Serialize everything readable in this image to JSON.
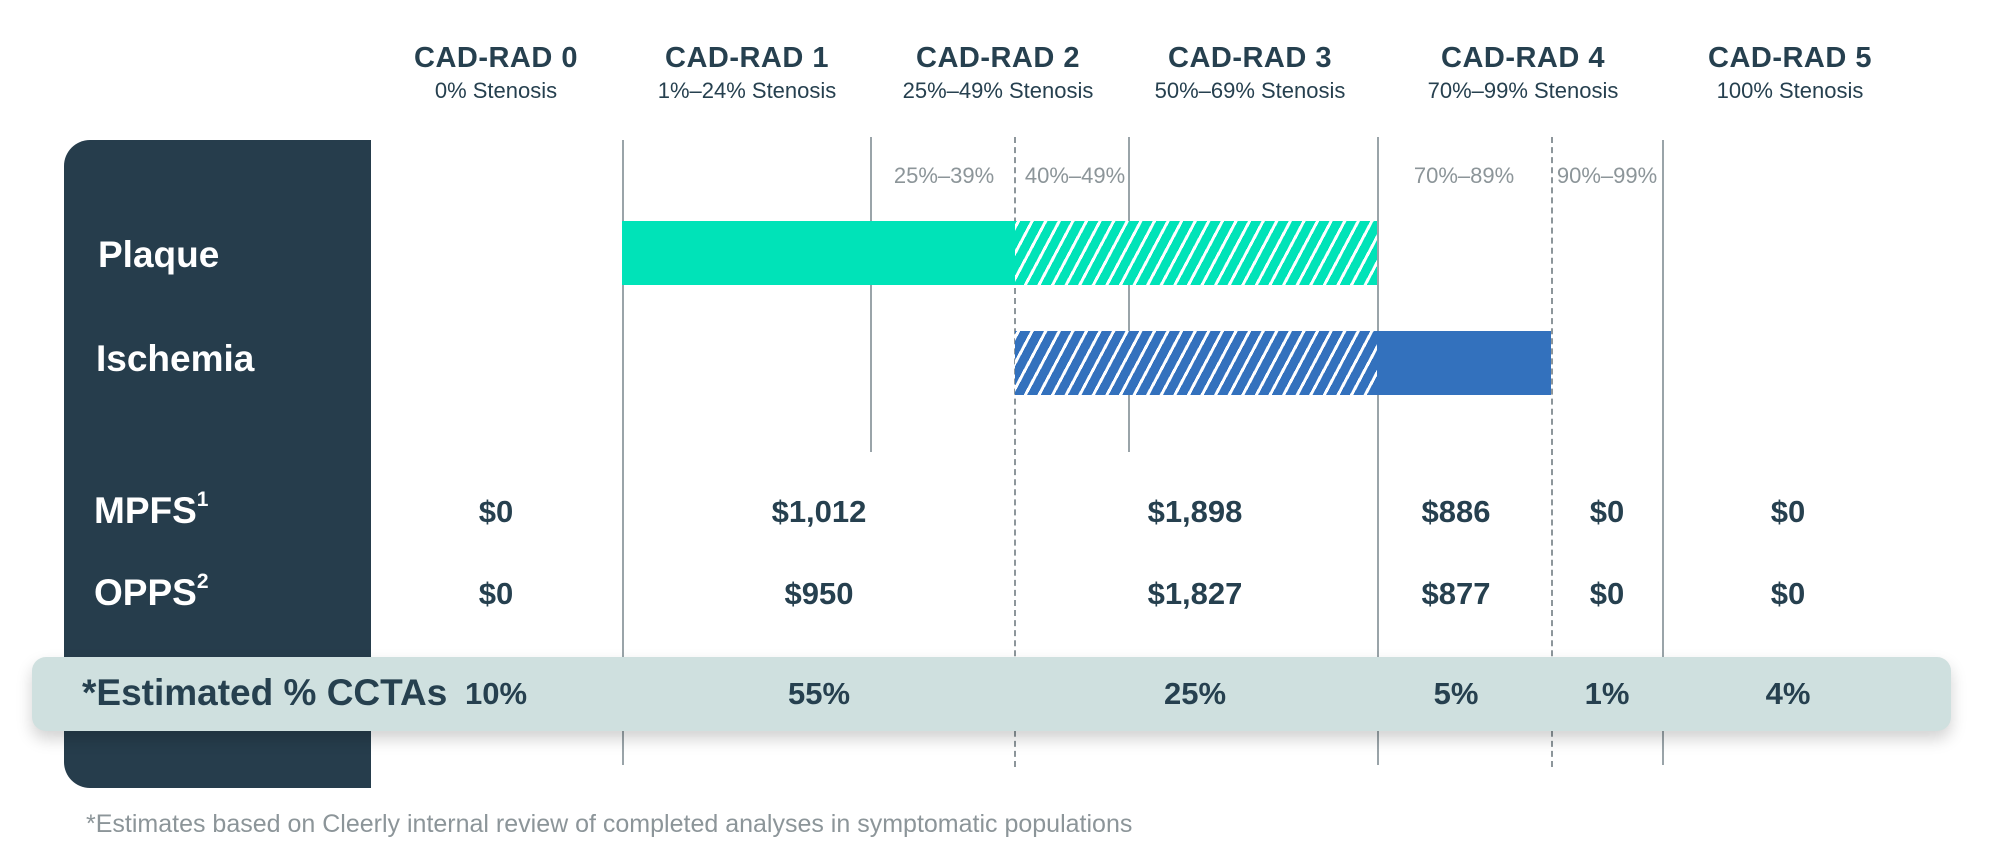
{
  "columns": [
    {
      "title": "CAD-RAD 0",
      "subtitle": "0% Stenosis"
    },
    {
      "title": "CAD-RAD 1",
      "subtitle": "1%–24% Stenosis"
    },
    {
      "title": "CAD-RAD 2",
      "subtitle": "25%–49% Stenosis"
    },
    {
      "title": "CAD-RAD 3",
      "subtitle": "50%–69% Stenosis"
    },
    {
      "title": "CAD-RAD 4",
      "subtitle": "70%–99% Stenosis"
    },
    {
      "title": "CAD-RAD 5",
      "subtitle": "100% Stenosis"
    }
  ],
  "subranges": {
    "r25_39": "25%–39%",
    "r40_49": "40%–49%",
    "r70_89": "70%–89%",
    "r90_99": "90%–99%"
  },
  "rows": {
    "plaque": "Plaque",
    "ischemia": "Ischemia",
    "mpfs": "MPFS",
    "mpfs_sup": "1",
    "opps": "OPPS",
    "opps_sup": "2",
    "estimated": "*Estimated % CCTAs"
  },
  "mpfs_values": {
    "c0": "$0",
    "c1": "$1,012",
    "c23": "$1,898",
    "c4a": "$886",
    "c4b": "$0",
    "c5": "$0"
  },
  "opps_values": {
    "c0": "$0",
    "c1": "$950",
    "c23": "$1,827",
    "c4a": "$877",
    "c4b": "$0",
    "c5": "$0"
  },
  "estimated_values": {
    "c0": "10%",
    "c1": "55%",
    "c23": "25%",
    "c4a": "5%",
    "c4b": "1%",
    "c5": "4%"
  },
  "footnote": "*Estimates based on Cleerly internal review of completed analyses in symptomatic populations",
  "colors": {
    "navy": "#263d4c",
    "plaque": "#00e3b8",
    "ischemia": "#3371bd",
    "band": "#cfe0df"
  }
}
